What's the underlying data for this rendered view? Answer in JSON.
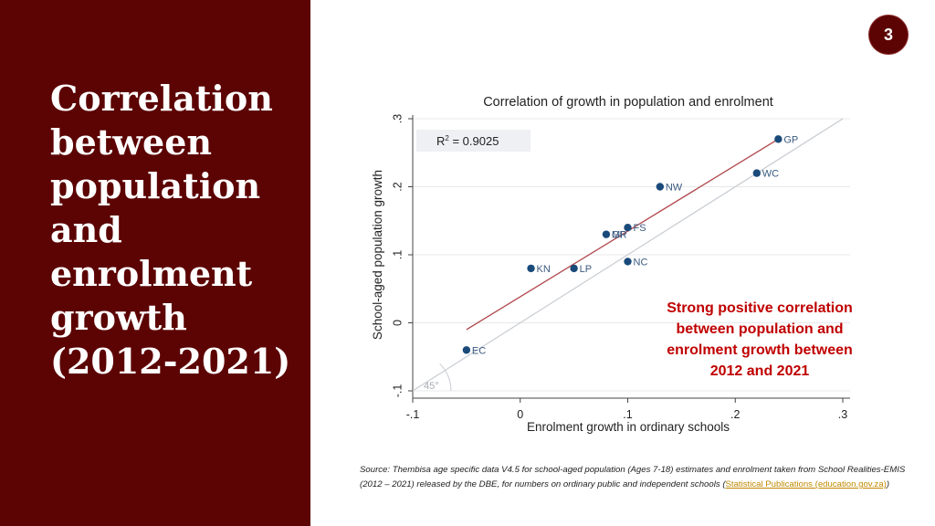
{
  "slide": {
    "title": "Correlation between population and enrolment growth (2012-2021)",
    "page_number": "3",
    "annotation": "Strong positive correlation between population and enrolment growth between 2012 and 2021",
    "source_prefix": "Source: Thembisa age specific data V4.5 for school-aged population (Ages 7-18) estimates and enrolment taken from School Realities-EMIS (2012 – 2021) released by the DBE, for numbers on ordinary public and independent schools (",
    "source_link": "Statistical Publications (education.gov.za)",
    "source_suffix": ")"
  },
  "colors": {
    "panel": "#5c0303",
    "point": "#1a4a7a",
    "fit_line": "#b0474c",
    "reference_line": "#c8ccd2",
    "annotation": "#c00000"
  },
  "chart_data": {
    "type": "scatter",
    "title": "Correlation of growth in population and enrolment",
    "xlabel": "Enrolment growth in ordinary schools",
    "ylabel": "School-aged population growth",
    "xlim": [
      -0.1,
      0.3
    ],
    "ylim": [
      -0.1,
      0.3
    ],
    "xticks": [
      "-.1",
      "0",
      ".1",
      ".2",
      ".3"
    ],
    "yticks": [
      "-.1",
      "0",
      ".1",
      ".2",
      ".3"
    ],
    "r2_label": "R",
    "r2_sup": "2",
    "r2_value": " =  0.9025",
    "reference_label": "45°",
    "grid": true,
    "points": [
      {
        "label": "GP",
        "x": 0.24,
        "y": 0.27
      },
      {
        "label": "WC",
        "x": 0.22,
        "y": 0.22
      },
      {
        "label": "NW",
        "x": 0.13,
        "y": 0.2
      },
      {
        "label": "FS",
        "x": 0.1,
        "y": 0.14
      },
      {
        "label": "EC",
        "x": -0.05,
        "y": -0.04
      },
      {
        "label": "KN",
        "x": 0.01,
        "y": 0.08
      },
      {
        "label": "LP",
        "x": 0.05,
        "y": 0.08
      },
      {
        "label": "NC",
        "x": 0.1,
        "y": 0.09
      },
      {
        "label": "MP",
        "x": 0.08,
        "y": 0.13
      },
      {
        "label": "GR",
        "x": 0.08,
        "y": 0.13
      }
    ],
    "fit_line": {
      "x": [
        -0.05,
        0.24
      ],
      "y": [
        -0.01,
        0.27
      ]
    },
    "reference_line": {
      "x": [
        -0.1,
        0.3
      ],
      "y": [
        -0.1,
        0.3
      ]
    }
  }
}
